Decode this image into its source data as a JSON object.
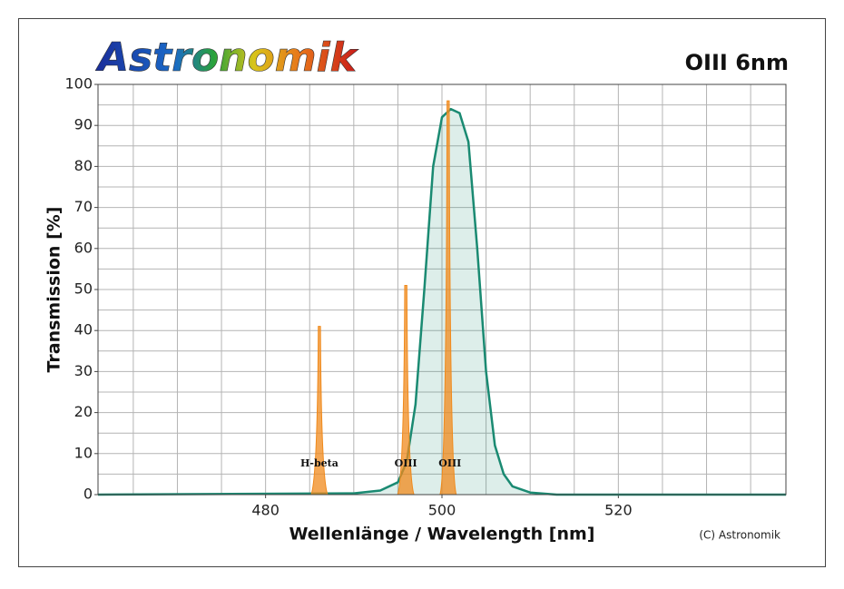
{
  "chart_data": {
    "type": "line",
    "logo": "Astronomik",
    "title": "OIII 6nm",
    "xlabel": "Wellenlänge / Wavelength [nm]",
    "ylabel": "Transmission [%]",
    "copyright": "(C) Astronomik",
    "xlim": [
      461,
      539
    ],
    "ylim": [
      0,
      100
    ],
    "xticks": [
      480,
      500,
      520
    ],
    "yticks": [
      0,
      10,
      20,
      30,
      40,
      50,
      60,
      70,
      80,
      90,
      100
    ],
    "xgrid": [
      465,
      470,
      475,
      480,
      485,
      490,
      495,
      500,
      505,
      510,
      515,
      520,
      525,
      530,
      535
    ],
    "ygrid": [
      5,
      10,
      15,
      20,
      25,
      30,
      35,
      40,
      45,
      50,
      55,
      60,
      65,
      70,
      75,
      80,
      85,
      90,
      95
    ],
    "grid": true,
    "series": [
      {
        "name": "OIII 6nm",
        "color": "#1a8a72",
        "x": [
          461,
          490,
          493,
          495,
          496,
          497,
          498,
          499,
          500,
          501,
          502,
          503,
          504,
          505,
          506,
          507,
          508,
          510,
          513,
          539
        ],
        "values": [
          0,
          0.3,
          1,
          3,
          8,
          22,
          50,
          80,
          92,
          94,
          93,
          86,
          60,
          30,
          12,
          5,
          2,
          0.5,
          0,
          0
        ]
      }
    ],
    "emission_lines": {
      "color": "#f08a1c",
      "x": [
        486.1,
        495.9,
        500.7
      ],
      "values": [
        41,
        51,
        96
      ],
      "labels": [
        "H-beta",
        "OIII",
        "OIII"
      ]
    }
  }
}
